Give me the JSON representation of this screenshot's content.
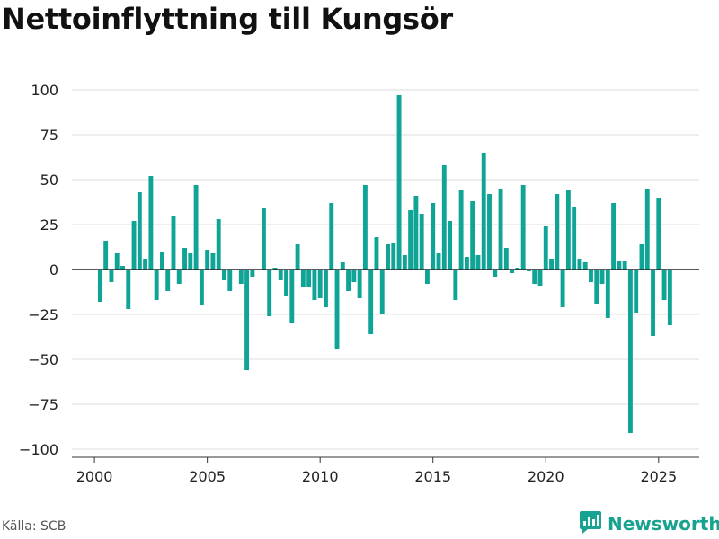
{
  "title": "Nettoinflyttning till Kungsör",
  "source": "Källa: SCB",
  "brand": {
    "name": "Newsworthy",
    "icon": "chart-logo-icon",
    "color": "#18a391"
  },
  "chart_data": {
    "type": "bar",
    "title": "Nettoinflyttning till Kungsör",
    "xlabel": "",
    "ylabel": "",
    "bar_color": "#0fa496",
    "zero_line_color": "#222222",
    "grid": true,
    "xlim": [
      1999.0,
      2026.8
    ],
    "ylim": [
      -105,
      110
    ],
    "yticks": [
      100,
      75,
      50,
      25,
      0,
      -25,
      -50,
      -75,
      -100
    ],
    "ytick_labels": [
      "100",
      "75",
      "50",
      "25",
      "0",
      "−25",
      "−50",
      "−75",
      "−100"
    ],
    "xticks": [
      2000,
      2005,
      2010,
      2015,
      2020,
      2025
    ],
    "xtick_labels": [
      "2000",
      "2005",
      "2010",
      "2015",
      "2020",
      "2025"
    ],
    "x": [
      2000.25,
      2000.5,
      2000.75,
      2001.0,
      2001.25,
      2001.5,
      2001.75,
      2002.0,
      2002.25,
      2002.5,
      2002.75,
      2003.0,
      2003.25,
      2003.5,
      2003.75,
      2004.0,
      2004.25,
      2004.5,
      2004.75,
      2005.0,
      2005.25,
      2005.5,
      2005.75,
      2006.0,
      2006.25,
      2006.5,
      2006.75,
      2007.0,
      2007.25,
      2007.5,
      2007.75,
      2008.0,
      2008.25,
      2008.5,
      2008.75,
      2009.0,
      2009.25,
      2009.5,
      2009.75,
      2010.0,
      2010.25,
      2010.5,
      2010.75,
      2011.0,
      2011.25,
      2011.5,
      2011.75,
      2012.0,
      2012.25,
      2012.5,
      2012.75,
      2013.0,
      2013.25,
      2013.5,
      2013.75,
      2014.0,
      2014.25,
      2014.5,
      2014.75,
      2015.0,
      2015.25,
      2015.5,
      2015.75,
      2016.0,
      2016.25,
      2016.5,
      2016.75,
      2017.0,
      2017.25,
      2017.5,
      2017.75,
      2018.0,
      2018.25,
      2018.5,
      2018.75,
      2019.0,
      2019.25,
      2019.5,
      2019.75,
      2020.0,
      2020.25,
      2020.5,
      2020.75,
      2021.0,
      2021.25,
      2021.5,
      2021.75,
      2022.0,
      2022.25,
      2022.5,
      2022.75,
      2023.0,
      2023.25,
      2023.5,
      2023.75,
      2024.0,
      2024.25,
      2024.5,
      2024.75,
      2025.0,
      2025.25,
      2025.5
    ],
    "values": [
      -18,
      16,
      -7,
      9,
      2,
      -22,
      27,
      43,
      6,
      52,
      -17,
      10,
      -12,
      30,
      -8,
      12,
      9,
      47,
      -20,
      11,
      9,
      28,
      -6,
      -12,
      0,
      -8,
      -56,
      -4,
      0,
      34,
      -26,
      1,
      -6,
      -15,
      -30,
      14,
      -10,
      -10,
      -17,
      -16,
      -21,
      37,
      -44,
      4,
      -12,
      -7,
      -16,
      47,
      -36,
      18,
      -25,
      14,
      15,
      97,
      8,
      33,
      41,
      31,
      -8,
      37,
      9,
      58,
      27,
      -17,
      44,
      7,
      38,
      8,
      65,
      42,
      -4,
      45,
      12,
      -2,
      1,
      47,
      -1,
      -8,
      -9,
      24,
      6,
      42,
      -21,
      44,
      35,
      6,
      4,
      -7,
      -19,
      -8,
      -27,
      37,
      5,
      5,
      -91,
      -24,
      14,
      45,
      -37,
      40,
      -17,
      -31
    ]
  }
}
